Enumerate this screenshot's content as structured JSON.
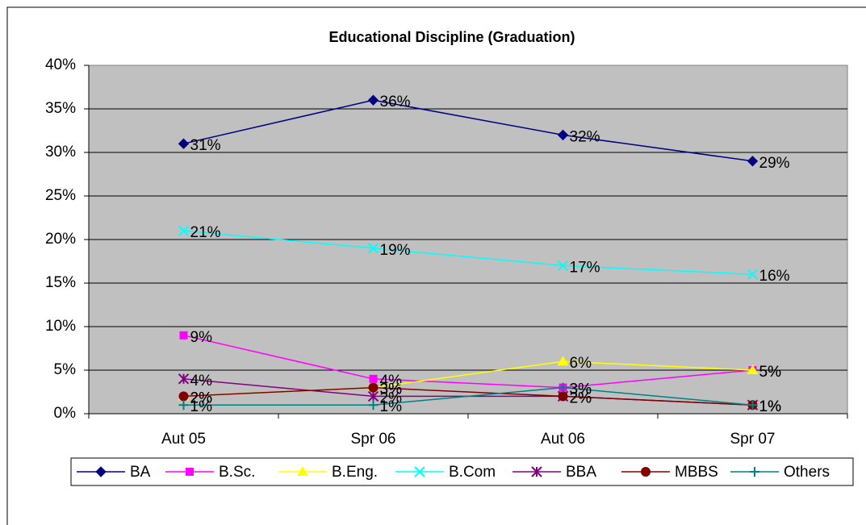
{
  "chart_data": {
    "type": "line",
    "title": "Educational Discipline (Graduation)",
    "categories": [
      "Aut 05",
      "Spr 06",
      "Aut 06",
      "Spr 07"
    ],
    "ylim": [
      0,
      40
    ],
    "yticks": [
      {
        "value": 0,
        "label": "0%"
      },
      {
        "value": 5,
        "label": "5%"
      },
      {
        "value": 10,
        "label": "10%"
      },
      {
        "value": 15,
        "label": "15%"
      },
      {
        "value": 20,
        "label": "20%"
      },
      {
        "value": 25,
        "label": "25%"
      },
      {
        "value": 30,
        "label": "30%"
      },
      {
        "value": 35,
        "label": "35%"
      },
      {
        "value": 40,
        "label": "40%"
      }
    ],
    "grid": true,
    "legend": "bottom",
    "series": [
      {
        "name": "BA",
        "color": "#000080",
        "marker": "diamond",
        "values": [
          31,
          36,
          32,
          29
        ],
        "value_labels": [
          "31%",
          "36%",
          "32%",
          "29%"
        ]
      },
      {
        "name": "B.Sc.",
        "color": "#FF00FF",
        "marker": "square",
        "values": [
          9,
          4,
          3,
          5
        ],
        "value_labels": [
          "9%",
          "4%",
          "3%",
          "5%"
        ]
      },
      {
        "name": "B.Eng.",
        "color": "#FFFF00",
        "marker": "triangle",
        "values": [
          2,
          3,
          6,
          5
        ],
        "value_labels": [
          "2%",
          "3%",
          "6%",
          "5%"
        ]
      },
      {
        "name": "B.Com",
        "color": "#00FFFF",
        "marker": "x",
        "values": [
          21,
          19,
          17,
          16
        ],
        "value_labels": [
          "21%",
          "19%",
          "17%",
          "16%"
        ]
      },
      {
        "name": "BBA",
        "color": "#800080",
        "marker": "star",
        "values": [
          4,
          2,
          2,
          1
        ],
        "value_labels": [
          "4%",
          "2%",
          "2%",
          "1%"
        ]
      },
      {
        "name": "MBBS",
        "color": "#800000",
        "marker": "circle",
        "values": [
          2,
          3,
          2,
          1
        ],
        "value_labels": [
          "2%",
          "3%",
          "2%",
          "1%"
        ]
      },
      {
        "name": "Others",
        "color": "#008080",
        "marker": "plus",
        "values": [
          1,
          1,
          3,
          1
        ],
        "value_labels": [
          "1%",
          "1%",
          "3%",
          "1%"
        ]
      }
    ]
  }
}
